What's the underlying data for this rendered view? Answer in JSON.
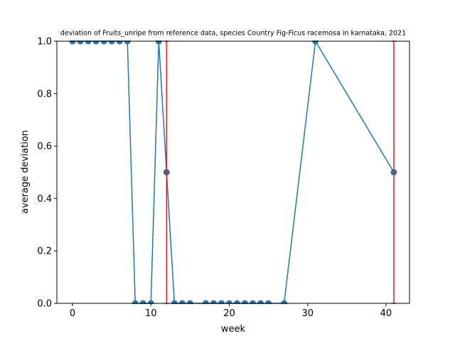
{
  "chart_data": {
    "type": "line",
    "title": "deviation of Fruits_unripe from reference data, species Country Fig-Ficus racemosa in karnataka, 2021",
    "xlabel": "week",
    "ylabel": "average deviation",
    "xlim": [
      -2,
      43
    ],
    "ylim": [
      0,
      1
    ],
    "xticks": [
      0,
      10,
      20,
      30,
      40
    ],
    "yticks": [
      0.0,
      0.2,
      0.4,
      0.6,
      0.8,
      1.0
    ],
    "grid": false,
    "legend": "none",
    "series": [
      {
        "color": "#1f77b4",
        "marker": "circle",
        "x": [
          0,
          1,
          2,
          3,
          4,
          5,
          6,
          7,
          8,
          9,
          10,
          11,
          12,
          13,
          14,
          15,
          17,
          18,
          19,
          20,
          21,
          22,
          23,
          24,
          25,
          27,
          31,
          41
        ],
        "y": [
          1,
          1,
          1,
          1,
          1,
          1,
          1,
          1,
          0,
          0,
          0,
          1,
          0.5,
          0,
          0,
          0,
          0,
          0,
          0,
          0,
          0,
          0,
          0,
          0,
          0,
          0,
          1,
          0.5
        ]
      }
    ],
    "error_bars": {
      "color": "#d62728",
      "items": [
        {
          "x": 12,
          "low": 0,
          "high": 1
        },
        {
          "x": 41,
          "low": 0,
          "high": 1
        }
      ]
    }
  }
}
